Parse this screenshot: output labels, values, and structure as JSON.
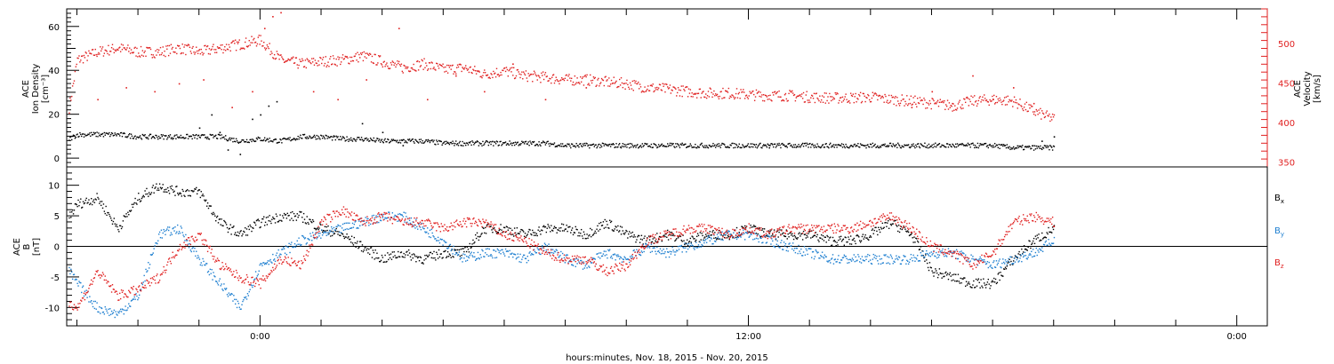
{
  "chart_data": [
    {
      "type": "scatter",
      "panel": "top",
      "ylabel_lines": [
        "ACE",
        "Ion Density",
        "[cm⁻³]"
      ],
      "y2label_lines": [
        "ACE",
        "Velocity",
        "[km/s]"
      ],
      "xlim": [
        -4.75,
        24.75
      ],
      "ylim": [
        -4,
        68
      ],
      "y2lim": [
        344,
        544
      ],
      "yticks": [
        0,
        20,
        40,
        60
      ],
      "ytick_labels": [
        "0",
        "20",
        "40",
        "60"
      ],
      "y2ticks": [
        350,
        400,
        450,
        500
      ],
      "y2tick_labels": [
        "350",
        "400",
        "450",
        "500"
      ],
      "series": [
        {
          "color": "#000000",
          "axis": "left",
          "x": [
            -4.7,
            -4.5,
            -4.0,
            -3.5,
            -3.0,
            -2.5,
            -2.0,
            -1.5,
            -1.0,
            -0.5,
            0.0,
            0.5,
            1.0,
            1.5,
            2.0,
            2.5,
            3.0,
            3.5,
            4.0,
            4.5,
            5.0,
            5.5,
            6.0,
            6.5,
            7.0,
            7.5,
            8.0,
            8.5,
            9.0,
            9.5,
            10.0,
            10.5,
            11.0,
            11.5,
            12.0,
            12.5,
            13.0,
            13.5,
            14.0,
            14.5,
            15.0,
            15.5,
            16.0,
            16.5,
            17.0,
            17.5,
            18.0,
            18.5,
            19.0,
            19.5
          ],
          "values": [
            9,
            11,
            11,
            11,
            10,
            10,
            10,
            10,
            10,
            8,
            9,
            8,
            10,
            10,
            9,
            9,
            8,
            8,
            8,
            7,
            7,
            7,
            7,
            7,
            7,
            6,
            6,
            6,
            6,
            6,
            6,
            6,
            6,
            6,
            6,
            6,
            6,
            6,
            6,
            6,
            6,
            6,
            6,
            6,
            6,
            6,
            6,
            5,
            5,
            5
          ],
          "extra_x": [
            -1.5,
            -1.2,
            -1.0,
            -0.8,
            -0.5,
            -0.2,
            0.0,
            0.2,
            0.4,
            2.5,
            3.0,
            3.5,
            12.5,
            19.2,
            19.5
          ],
          "extra_values": [
            14,
            20,
            12,
            4,
            2,
            18,
            20,
            24,
            26,
            16,
            12,
            6,
            5,
            8,
            10
          ]
        },
        {
          "color": "#e02020",
          "axis": "right",
          "x": [
            -4.7,
            -4.5,
            -4.0,
            -3.5,
            -3.0,
            -2.5,
            -2.0,
            -1.5,
            -1.0,
            -0.5,
            0.0,
            0.5,
            1.0,
            1.5,
            2.0,
            2.5,
            3.0,
            3.5,
            4.0,
            4.5,
            5.0,
            5.5,
            6.0,
            6.5,
            7.0,
            7.5,
            8.0,
            8.5,
            9.0,
            9.5,
            10.0,
            10.5,
            11.0,
            11.5,
            12.0,
            12.5,
            13.0,
            13.5,
            14.0,
            14.5,
            15.0,
            15.5,
            16.0,
            16.5,
            17.0,
            17.5,
            18.0,
            18.5,
            19.0,
            19.5
          ],
          "values": [
            420,
            480,
            490,
            495,
            490,
            490,
            495,
            490,
            495,
            500,
            505,
            480,
            475,
            478,
            480,
            485,
            478,
            470,
            475,
            468,
            470,
            462,
            466,
            460,
            458,
            455,
            455,
            452,
            450,
            445,
            443,
            440,
            438,
            438,
            436,
            435,
            435,
            433,
            432,
            432,
            433,
            430,
            428,
            425,
            422,
            428,
            430,
            428,
            415,
            405
          ],
          "extra_x": [
            -4.0,
            -3.3,
            -2.6,
            -2.0,
            -1.4,
            -0.7,
            -0.2,
            0.1,
            0.3,
            0.5,
            1.3,
            1.9,
            2.6,
            3.4,
            4.1,
            4.8,
            5.5,
            6.2,
            7.0,
            8.0,
            16.0,
            16.5,
            17.0,
            17.5,
            18.0,
            18.5,
            19.0
          ],
          "extra_values": [
            430,
            445,
            440,
            450,
            455,
            420,
            440,
            520,
            535,
            540,
            440,
            430,
            455,
            520,
            430,
            460,
            440,
            475,
            430,
            445,
            420,
            440,
            425,
            460,
            430,
            445,
            425
          ]
        }
      ]
    },
    {
      "type": "scatter",
      "panel": "bottom",
      "ylabel_lines": [
        "ACE",
        "B",
        "[nT]"
      ],
      "xlim": [
        -4.75,
        24.75
      ],
      "ylim": [
        -13,
        13
      ],
      "yticks": [
        -10,
        -5,
        0,
        5,
        10
      ],
      "ytick_labels": [
        "-10",
        "-5",
        "0",
        "5",
        "10"
      ],
      "xticks": [
        0,
        12,
        24
      ],
      "xtick_labels": [
        "0:00",
        "12:00",
        "0:00"
      ],
      "xlabel": "hours:minutes, Nov. 18, 2015 - Nov. 20, 2015",
      "legend": [
        {
          "label": "B",
          "sub": "x",
          "color": "#000000"
        },
        {
          "label": "B",
          "sub": "y",
          "color": "#1e7fd0"
        },
        {
          "label": "B",
          "sub": "z",
          "color": "#e02020"
        }
      ],
      "legend_position": "right",
      "series": [
        {
          "name": "Bx",
          "color": "#000000",
          "x": [
            -4.7,
            -4.5,
            -4.0,
            -3.5,
            -3.0,
            -2.5,
            -2.0,
            -1.5,
            -1.0,
            -0.5,
            0.0,
            0.5,
            1.0,
            1.5,
            2.0,
            2.5,
            3.0,
            3.5,
            4.0,
            4.5,
            5.0,
            5.5,
            6.0,
            6.5,
            7.0,
            7.5,
            8.0,
            8.5,
            9.0,
            9.5,
            10.0,
            10.5,
            11.0,
            11.5,
            12.0,
            12.5,
            13.0,
            13.5,
            14.0,
            14.5,
            15.0,
            15.5,
            16.0,
            16.5,
            17.0,
            17.5,
            18.0,
            18.5,
            19.0,
            19.5
          ],
          "values": [
            5,
            7,
            8,
            3,
            8,
            10,
            9,
            9,
            4,
            2,
            4,
            5,
            5,
            3,
            2,
            0,
            -2,
            -1,
            -2,
            -1,
            -1,
            3,
            3,
            2,
            3,
            3,
            2,
            4,
            2,
            1,
            2,
            1,
            2,
            2,
            3,
            2,
            2,
            2,
            1,
            1,
            2,
            4,
            2,
            -4,
            -5,
            -6,
            -6,
            -2,
            1,
            3
          ]
        },
        {
          "name": "By",
          "color": "#1e7fd0",
          "x": [
            -4.7,
            -4.5,
            -4.0,
            -3.5,
            -3.0,
            -2.5,
            -2.0,
            -1.5,
            -1.0,
            -0.5,
            0.0,
            0.5,
            1.0,
            1.5,
            2.0,
            2.5,
            3.0,
            3.5,
            4.0,
            4.5,
            5.0,
            5.5,
            6.0,
            6.5,
            7.0,
            7.5,
            8.0,
            8.5,
            9.0,
            9.5,
            10.0,
            10.5,
            11.0,
            11.5,
            12.0,
            12.5,
            13.0,
            13.5,
            14.0,
            14.5,
            15.0,
            15.5,
            16.0,
            16.5,
            17.0,
            17.5,
            18.0,
            18.5,
            19.0,
            19.5
          ],
          "values": [
            -4,
            -6,
            -10,
            -11,
            -8,
            2,
            3,
            -2,
            -6,
            -10,
            -3,
            -1,
            1,
            2,
            3,
            4,
            5,
            5,
            3,
            1,
            -2,
            -1,
            -1,
            -2,
            0,
            -2,
            -3,
            -1,
            -2,
            0,
            -1,
            0,
            1,
            2,
            2,
            1,
            0,
            -1,
            -2,
            -2,
            -2,
            -2,
            -2,
            -1,
            -1,
            -2,
            -3,
            -2,
            -1,
            1
          ]
        },
        {
          "name": "Bz",
          "color": "#e02020",
          "x": [
            -4.7,
            -4.5,
            -4.0,
            -3.5,
            -3.0,
            -2.5,
            -2.0,
            -1.5,
            -1.0,
            -0.5,
            0.0,
            0.5,
            1.0,
            1.5,
            2.0,
            2.5,
            3.0,
            3.5,
            4.0,
            4.5,
            5.0,
            5.5,
            6.0,
            6.5,
            7.0,
            7.5,
            8.0,
            8.5,
            9.0,
            9.5,
            10.0,
            10.5,
            11.0,
            11.5,
            12.0,
            12.5,
            13.0,
            13.5,
            14.0,
            14.5,
            15.0,
            15.5,
            16.0,
            16.5,
            17.0,
            17.5,
            18.0,
            18.5,
            19.0,
            19.5
          ],
          "values": [
            -9,
            -10,
            -4,
            -8,
            -7,
            -5,
            0,
            2,
            -3,
            -5,
            -6,
            -2,
            -3,
            4,
            6,
            4,
            5,
            4,
            4,
            3,
            4,
            4,
            2,
            1,
            -1,
            -2,
            -2,
            -4,
            -3,
            1,
            2,
            3,
            3,
            2,
            3,
            2,
            3,
            3,
            3,
            3,
            4,
            5,
            3,
            0,
            -1,
            -3,
            -1,
            4,
            5,
            4
          ]
        }
      ]
    }
  ]
}
